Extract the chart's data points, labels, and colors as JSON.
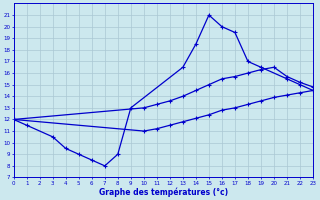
{
  "xlabel": "Graphe des températures (°c)",
  "bg_color": "#cce8ee",
  "grid_color": "#aac8d4",
  "line_color": "#0000cc",
  "ylim": [
    7,
    22
  ],
  "xlim": [
    0,
    23
  ],
  "yticks": [
    7,
    8,
    9,
    10,
    11,
    12,
    13,
    14,
    15,
    16,
    17,
    18,
    19,
    20,
    21
  ],
  "xticks": [
    0,
    1,
    2,
    3,
    4,
    5,
    6,
    7,
    8,
    9,
    10,
    11,
    12,
    13,
    14,
    15,
    16,
    17,
    18,
    19,
    20,
    21,
    22,
    23
  ],
  "curve_main_x": [
    0,
    1,
    3,
    4,
    5,
    6,
    7,
    8,
    9,
    13,
    14,
    15,
    16,
    17,
    18,
    19,
    21,
    22,
    23
  ],
  "curve_main_y": [
    12,
    11.5,
    10.5,
    9.5,
    9.0,
    8.5,
    8.0,
    9.0,
    13.0,
    16.5,
    18.5,
    21.0,
    20.0,
    19.5,
    17.0,
    16.5,
    15.5,
    15.0,
    14.5
  ],
  "curve_upper_x": [
    0,
    10,
    11,
    12,
    13,
    14,
    15,
    16,
    17,
    18,
    19,
    20,
    21,
    22,
    23
  ],
  "curve_upper_y": [
    12,
    13.0,
    13.3,
    13.6,
    14.0,
    14.5,
    15.0,
    15.5,
    15.7,
    16.0,
    16.3,
    16.5,
    15.7,
    15.2,
    14.8
  ],
  "curve_lower_x": [
    0,
    10,
    11,
    12,
    13,
    14,
    15,
    16,
    17,
    18,
    19,
    20,
    21,
    22,
    23
  ],
  "curve_lower_y": [
    12,
    11.0,
    11.2,
    11.5,
    11.8,
    12.1,
    12.4,
    12.8,
    13.0,
    13.3,
    13.6,
    13.9,
    14.1,
    14.3,
    14.5
  ]
}
